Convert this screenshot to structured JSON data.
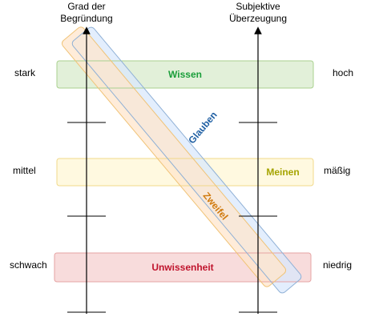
{
  "axes": {
    "left_title_line1": "Grad der",
    "left_title_line2": "Begründung",
    "right_title_line1": "Subjektive",
    "right_title_line2": "Überzeugung"
  },
  "left_levels": [
    "stark",
    "mittel",
    "schwach"
  ],
  "right_levels": [
    "hoch",
    "mäßig",
    "niedrig"
  ],
  "bands": {
    "wissen": {
      "label": "Wissen",
      "fill": "#e2f0d9",
      "stroke": "#a9d18e",
      "text": "#1a9e3a"
    },
    "meinen": {
      "label": "Meinen",
      "fill": "#fff9e0",
      "stroke": "#f1d98a",
      "text": "#a5a400"
    },
    "unwissenheit": {
      "label": "Unwissenheit",
      "fill": "#f8dcdc",
      "stroke": "#e6a3a3",
      "text": "#c0142d"
    },
    "glauben": {
      "label": "Glauben",
      "fill": "#dae8fc",
      "stroke": "#8fb0d6",
      "text": "#1f5fa3"
    },
    "zweifel": {
      "label": "Zweifel",
      "fill": "#ffe6cc",
      "stroke": "#f0c377",
      "text": "#d07a0e"
    }
  }
}
